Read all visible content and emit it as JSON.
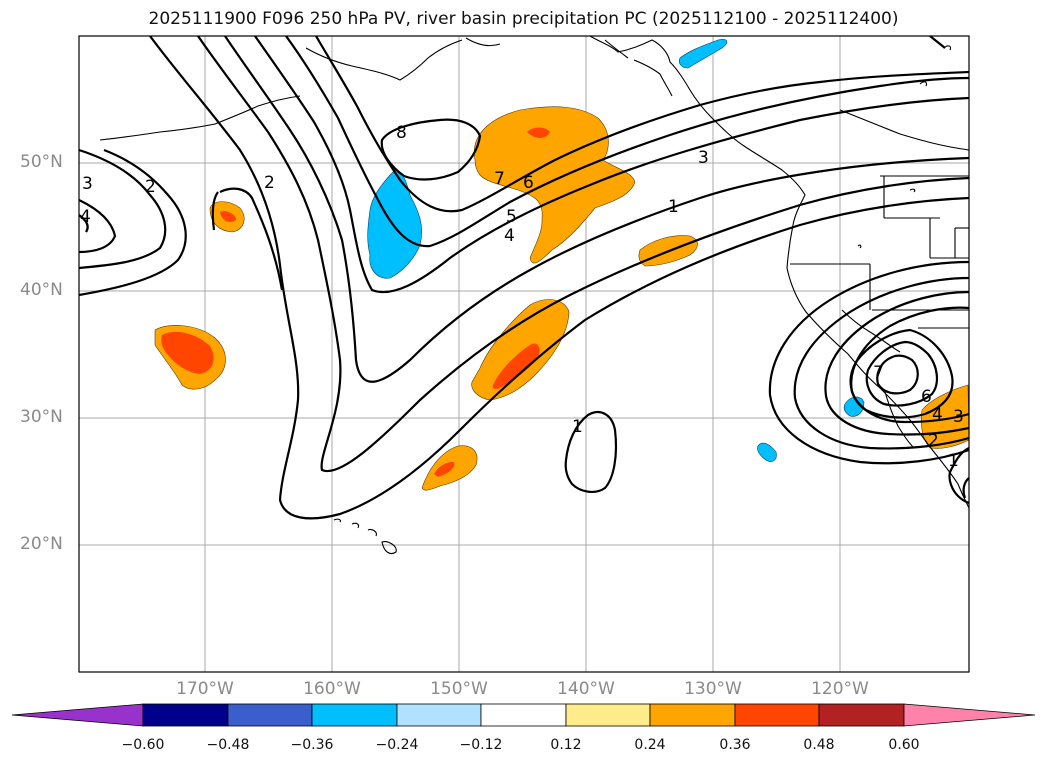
{
  "title": "2025111900 F096 250 hPa PV, river basin precipitation PC (2025112100 - 2025112400)",
  "map": {
    "region": "North Pacific",
    "lat_labels": [
      "50°N",
      "40°N",
      "30°N",
      "20°N"
    ],
    "lon_labels": [
      "170°W",
      "160°W",
      "150°W",
      "140°W",
      "130°W",
      "120°W"
    ],
    "gridline_color": "#aaaaaa",
    "coastline_color": "#000000"
  },
  "pv_contours": {
    "color": "#000000",
    "labels": [
      "3",
      "2",
      "2",
      "4",
      "8",
      "7",
      "6",
      "5",
      "4",
      "3",
      "1",
      "1",
      "7",
      "6",
      "4",
      "3",
      "2",
      "1"
    ]
  },
  "colorbar": {
    "ticks": [
      "−0.60",
      "−0.48",
      "−0.36",
      "−0.24",
      "−0.12",
      "0.12",
      "0.24",
      "0.36",
      "0.48",
      "0.60"
    ],
    "colors": [
      "#9932CC",
      "#00008B",
      "#3A5FCD",
      "#00BFFF",
      "#B0E2FF",
      "#FFFFFF",
      "#FFEC8B",
      "#FFA500",
      "#FF4500",
      "#B22222",
      "#FF82AB"
    ]
  }
}
